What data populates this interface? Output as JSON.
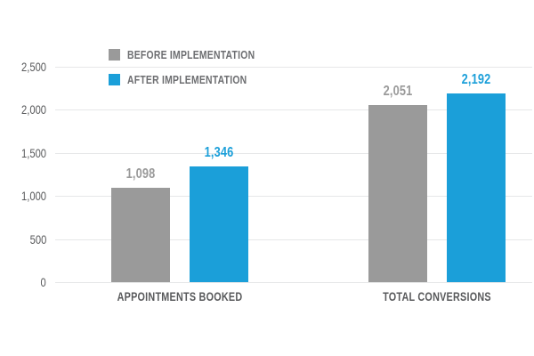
{
  "chart_data": {
    "type": "bar",
    "title": "",
    "categories": [
      "APPOINTMENTS BOOKED",
      "TOTAL CONVERSIONS"
    ],
    "series": [
      {
        "name": "BEFORE IMPLEMENTATION",
        "color": "#9A9A9A",
        "values": [
          1098,
          2051
        ],
        "value_labels": [
          "1,098",
          "2,051"
        ]
      },
      {
        "name": "AFTER IMPLEMENTATION",
        "color": "#1B9FD9",
        "values": [
          1346,
          2192
        ],
        "value_labels": [
          "1,346",
          "2,192"
        ]
      }
    ],
    "ylim": [
      0,
      2500
    ],
    "yticks": [
      {
        "value": 0,
        "label": "0"
      },
      {
        "value": 500,
        "label": "500"
      },
      {
        "value": 1000,
        "label": "1,000"
      },
      {
        "value": 1500,
        "label": "1,500"
      },
      {
        "value": 2000,
        "label": "2,000"
      },
      {
        "value": 2500,
        "label": "2,500"
      }
    ],
    "grid": true,
    "legend_position": "top-left",
    "colors": {
      "background": "#FFFFFF",
      "grid": "#E6E7E8",
      "axis_text": "#58595B",
      "legend_text": "#6D6E71"
    }
  }
}
